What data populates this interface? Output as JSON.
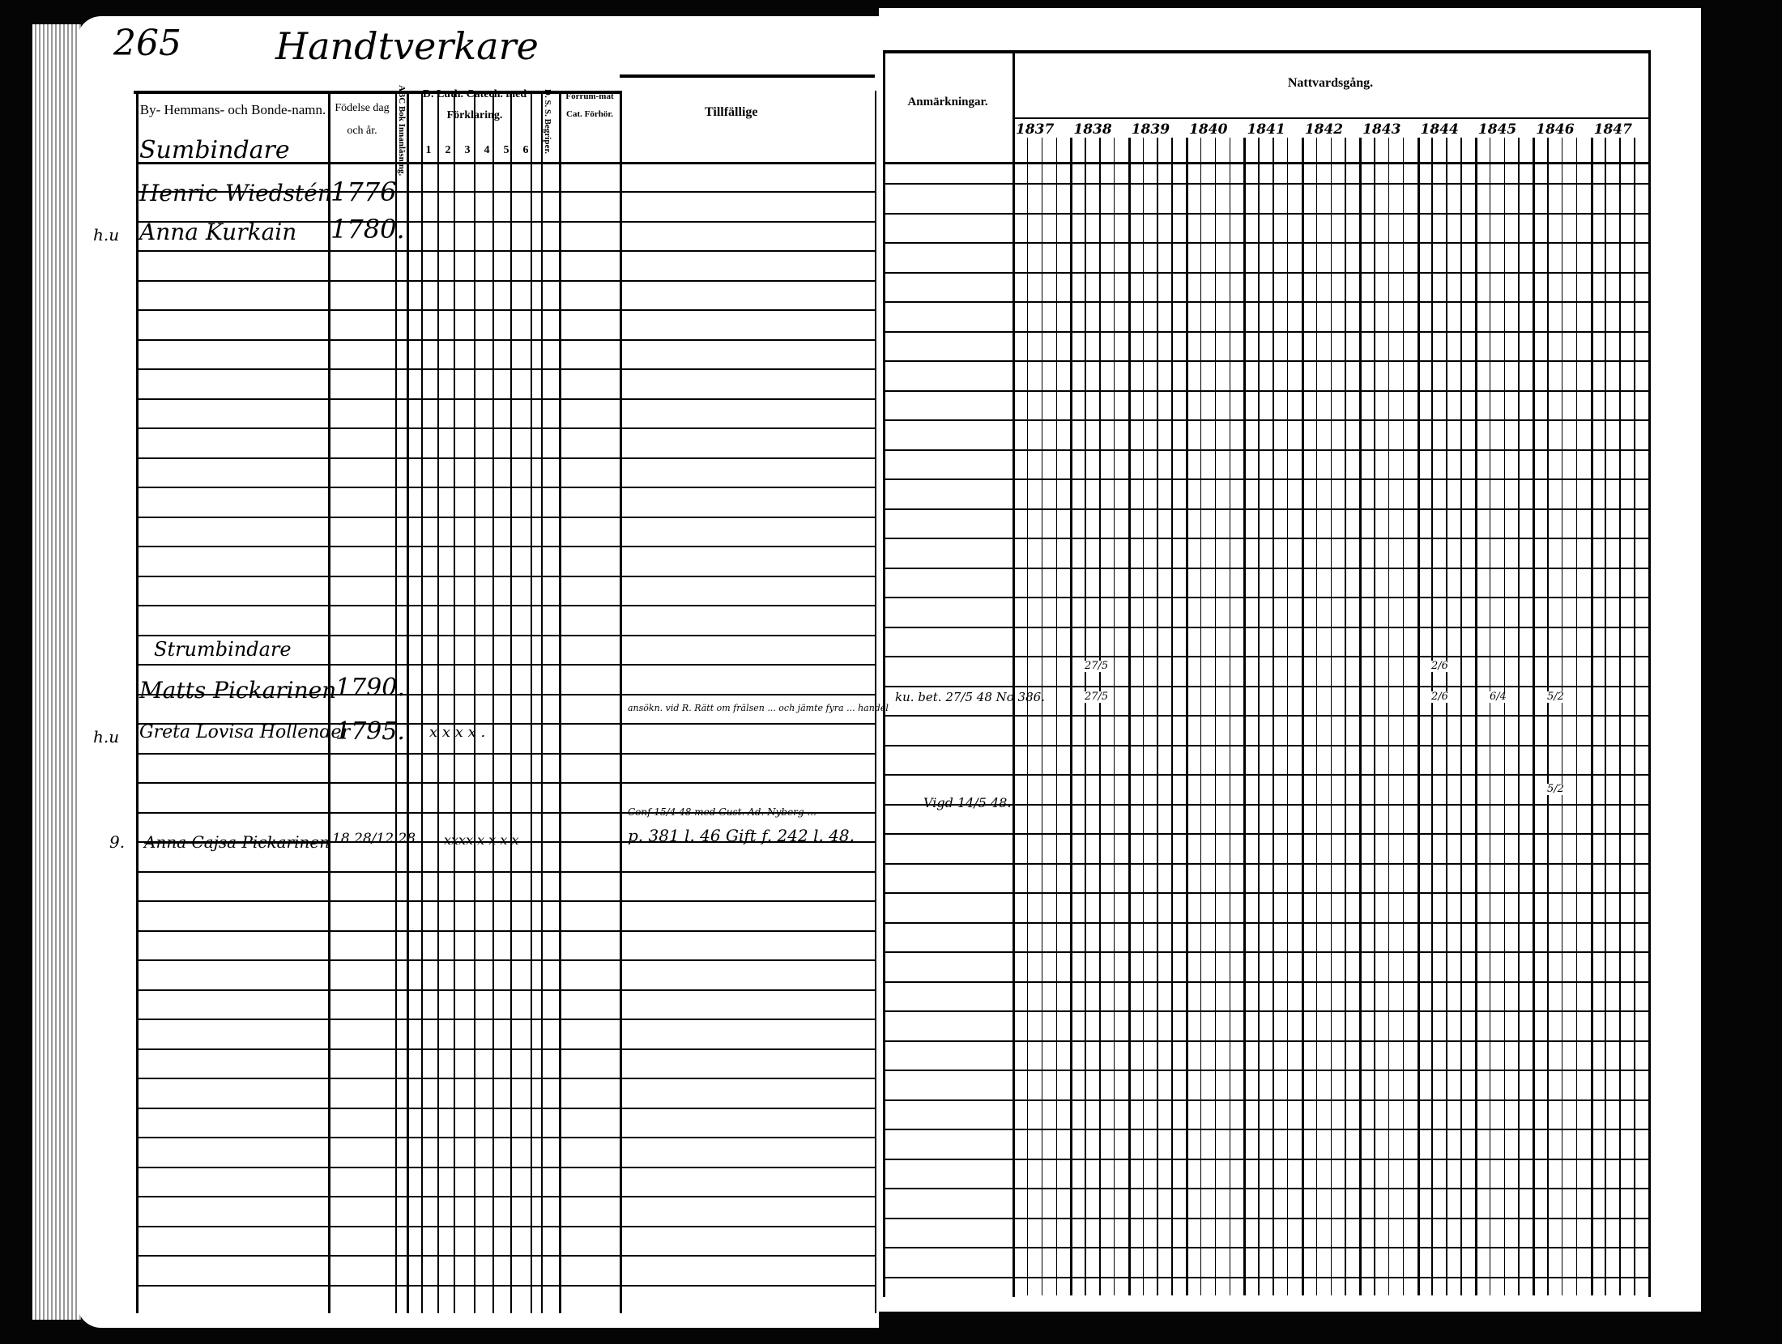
{
  "page_number": "265",
  "section_title": "Handtverkare",
  "left_headers": {
    "name": "By- Hemmans- och Bonde-namn.",
    "birth": "Födelse dag och år.",
    "abc": "ABC Bok Innanläsning.",
    "catechism": "D. Luth. Catech. med Förklaring.",
    "catechism_parts": [
      "1",
      "2",
      "3",
      "4",
      "5",
      "6"
    ],
    "ds": "D. S. S. Begriper.",
    "forhor": "Förrum-mat Cat. Förhör.",
    "tillfallige": "Tillfällige"
  },
  "right_headers": {
    "anmarkningar": "Anmärkningar.",
    "nattvard": "Nattvardsgång.",
    "years": [
      "1837",
      "1838",
      "1839",
      "1840",
      "1841",
      "1842",
      "1843",
      "1844",
      "1845",
      "1846",
      "1847"
    ]
  },
  "entries": [
    {
      "occupation": "Sumbindare"
    },
    {
      "name": "Henric Wiedstén",
      "birth": "1776",
      "margin": ""
    },
    {
      "name": "Anna Kurkain",
      "birth": "1780.",
      "margin": "h.u"
    },
    {
      "occupation": "Strumbindare"
    },
    {
      "name": "Matts Pickarinen",
      "birth": "1790.",
      "margin": ""
    },
    {
      "name": "Greta Lovisa Hollender",
      "birth": "1795.",
      "margin": "h.u",
      "catechism_marks": "x x x x .",
      "tillfallige": "ansökn. vid R. Rätt om frälsen ... och jämte fyra ... handel",
      "anmarkningar": "ku. bet. 27/5 48 No 386."
    },
    {
      "name": "Anna Cajsa Pickarinen",
      "birth": "18 28/12 28",
      "margin": "9.",
      "catechism_marks": "xxxx x x x x",
      "tillfallige_1": "Conf 15/4 48 med Gust. Ad. Nyberg ...",
      "tillfallige_2": "p. 381 l. 46 Gift f. 242 l. 48.",
      "anmarkningar": "Vigd 14/5 48."
    }
  ],
  "communion_marks": [
    {
      "year": "1838",
      "text": "27/5",
      "row": "Matts Pickarinen"
    },
    {
      "year": "1838",
      "text": "27/5",
      "row": "Greta Lovisa Hollender"
    },
    {
      "year": "1844",
      "text": "2/6",
      "row": "Matts Pickarinen"
    },
    {
      "year": "1844",
      "text": "2/6",
      "row": "Greta Lovisa Hollender"
    },
    {
      "year": "1845",
      "text": "6/4",
      "row": "Greta Lovisa Hollender"
    },
    {
      "year": "1846",
      "text": "5/2",
      "row": "Greta Lovisa Hollender"
    },
    {
      "year": "1846",
      "text": "5/2",
      "row": "blank below"
    }
  ],
  "colors": {
    "paper": "#ffffff",
    "ink": "#000000",
    "background": "#050505"
  }
}
